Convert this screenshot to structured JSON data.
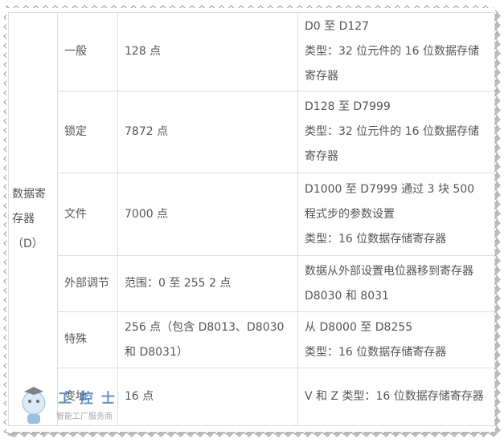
{
  "table": {
    "group": "数据寄存器（D）",
    "rows": [
      [
        "一般",
        "128 点",
        [
          "D0 至 D127",
          "类型：32 位元件的 16 位数据存储寄存器"
        ]
      ],
      [
        "锁定",
        "7872 点",
        [
          "D128 至 D7999",
          "类型：32 位元件的 16 位数据存储寄存器"
        ]
      ],
      [
        "文件",
        "7000 点",
        [
          "D1000 至 D7999 通过 3 块 500 程式步的参数设置",
          "类型：16 位数据存储寄存器"
        ]
      ],
      [
        "外部调节",
        "范围：0 至 255 2 点",
        [
          "数据从外部设置电位器移到寄存器 D8030 和 8031"
        ]
      ],
      [
        "特殊",
        "256 点（包含 D8013、D8030 和 D8031）",
        [
          "从 D8000 至 D8255",
          "类型：16 位数据存储寄存器"
        ]
      ],
      [
        "变址",
        "16 点",
        [
          "V 和 Z 类型：16 位数据存储寄存器"
        ]
      ]
    ]
  },
  "watermark": {
    "brand": "工 控 士",
    "slogan": "智能工厂服务商"
  }
}
